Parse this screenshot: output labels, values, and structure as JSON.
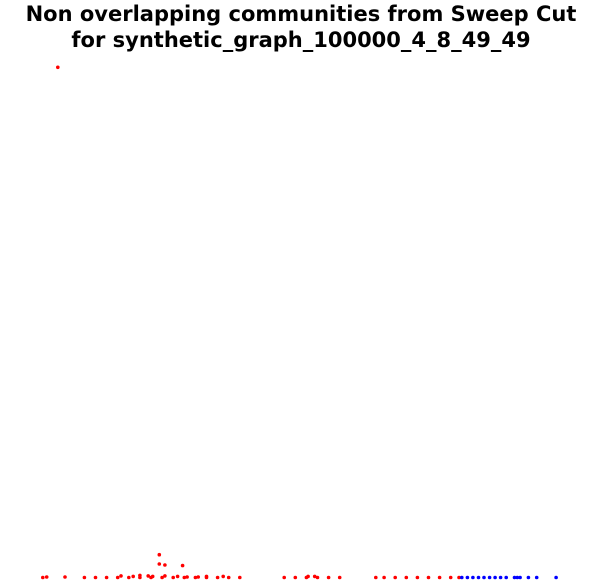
{
  "chart_data": {
    "type": "scatter",
    "title_line1": "Non overlapping communities from Sweep Cut",
    "title_line2": "for synthetic_graph_100000_4_8_49_49",
    "xlabel": "",
    "ylabel": "",
    "grid": false,
    "axes_visible": false,
    "xlim": [
      0,
      100
    ],
    "ylim": [
      0,
      100
    ],
    "series": [
      {
        "color": "#ff0000",
        "marker": "dot",
        "points": [
          [
            3.2,
            98.6
          ],
          [
            0.5,
            0.1
          ],
          [
            1.2,
            0.2
          ],
          [
            4.5,
            0.2
          ],
          [
            8.0,
            0.1
          ],
          [
            10.0,
            0.1
          ],
          [
            12.0,
            0.1
          ],
          [
            14.0,
            0.1
          ],
          [
            16.0,
            0.1
          ],
          [
            18.0,
            0.1
          ],
          [
            20.0,
            0.1
          ],
          [
            22.0,
            0.1
          ],
          [
            24.0,
            0.1
          ],
          [
            26.0,
            0.1
          ],
          [
            28.0,
            0.1
          ],
          [
            30.0,
            0.1
          ],
          [
            32.0,
            0.1
          ],
          [
            34.0,
            0.1
          ],
          [
            36.0,
            0.1
          ],
          [
            14.6,
            0.4
          ],
          [
            16.8,
            0.3
          ],
          [
            18.0,
            0.5
          ],
          [
            19.5,
            0.4
          ],
          [
            20.3,
            0.3
          ],
          [
            22.5,
            0.4
          ],
          [
            24.8,
            0.3
          ],
          [
            26.5,
            0.2
          ],
          [
            28.5,
            0.2
          ],
          [
            30.0,
            0.3
          ],
          [
            33.0,
            0.3
          ],
          [
            21.5,
            4.5
          ],
          [
            21.5,
            2.7
          ],
          [
            22.5,
            2.5
          ],
          [
            25.7,
            2.4
          ],
          [
            44.0,
            0.1
          ],
          [
            46.0,
            0.1
          ],
          [
            48.0,
            0.1
          ],
          [
            50.0,
            0.1
          ],
          [
            52.0,
            0.1
          ],
          [
            54.0,
            0.1
          ],
          [
            48.3,
            0.3
          ],
          [
            49.5,
            0.3
          ],
          [
            60.5,
            0.1
          ],
          [
            62.0,
            0.1
          ],
          [
            64.0,
            0.1
          ],
          [
            66.0,
            0.1
          ],
          [
            68.0,
            0.1
          ],
          [
            70.0,
            0.1
          ],
          [
            72.0,
            0.1
          ],
          [
            74.0,
            0.1
          ],
          [
            75.5,
            0.1
          ]
        ]
      },
      {
        "color": "#0000ff",
        "marker": "dot",
        "points": [
          [
            76.0,
            0.1
          ],
          [
            77.0,
            0.1
          ],
          [
            78.0,
            0.1
          ],
          [
            79.0,
            0.1
          ],
          [
            80.0,
            0.1
          ],
          [
            81.0,
            0.1
          ],
          [
            82.0,
            0.1
          ],
          [
            83.0,
            0.1
          ],
          [
            84.0,
            0.1
          ],
          [
            85.5,
            0.1
          ],
          [
            86.0,
            0.1
          ],
          [
            86.5,
            0.1
          ],
          [
            88.0,
            0.1
          ],
          [
            89.5,
            0.1
          ],
          [
            93.0,
            0.1
          ]
        ]
      }
    ]
  }
}
